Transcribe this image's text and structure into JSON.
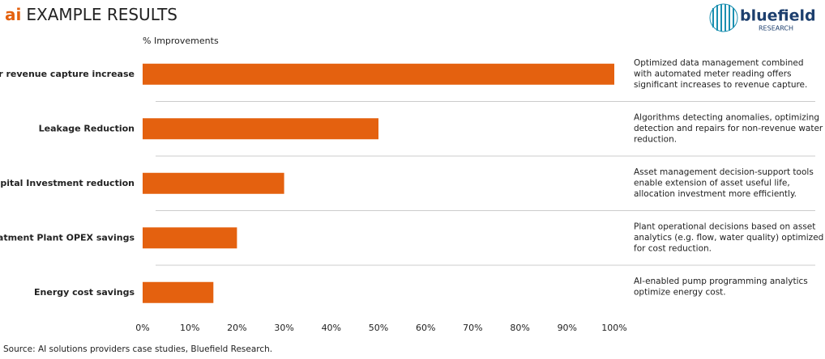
{
  "chart_data": {
    "type": "bar",
    "orientation": "horizontal",
    "title_prefix": "ai",
    "title": "EXAMPLE RESULTS",
    "logo_text": "bluefield",
    "logo_subtext": "RESEARCH",
    "x_label": "% Improvements",
    "categories": [
      "Meter revenue capture increase",
      "Leakage Reduction",
      "Capital Investment reduction",
      "Treatment Plant OPEX savings",
      "Energy cost savings"
    ],
    "values": [
      100,
      50,
      30,
      20,
      15
    ],
    "color": "#e4610f",
    "accent_color": "#e4610f",
    "xlim": [
      0,
      100
    ],
    "xticks": [
      {
        "value": 0,
        "label": "0%"
      },
      {
        "value": 10,
        "label": "10%"
      },
      {
        "value": 20,
        "label": "20%"
      },
      {
        "value": 30,
        "label": "30%"
      },
      {
        "value": 40,
        "label": "40%"
      },
      {
        "value": 50,
        "label": "50%"
      },
      {
        "value": 60,
        "label": "60%"
      },
      {
        "value": 70,
        "label": "70%"
      },
      {
        "value": 80,
        "label": "80%"
      },
      {
        "value": 90,
        "label": "90%"
      },
      {
        "value": 100,
        "label": "100%"
      }
    ],
    "annotations": [
      [
        "Optimized data management combined",
        "with automated meter reading offers",
        "significant increases to revenue capture."
      ],
      [
        "Algorithms detecting anomalies, optimizing",
        "detection and repairs for non-revenue water",
        "reduction."
      ],
      [
        "Asset management decision-support tools",
        "enable extension of asset useful life,",
        "allocation investment more efficiently."
      ],
      [
        "Plant operational decisions based on asset",
        "analytics (e.g. flow, water quality) optimized",
        "for cost reduction."
      ],
      [
        "AI-enabled pump programming analytics",
        "optimize energy cost."
      ]
    ],
    "source": "Source: AI solutions providers case studies, Bluefield Research."
  }
}
